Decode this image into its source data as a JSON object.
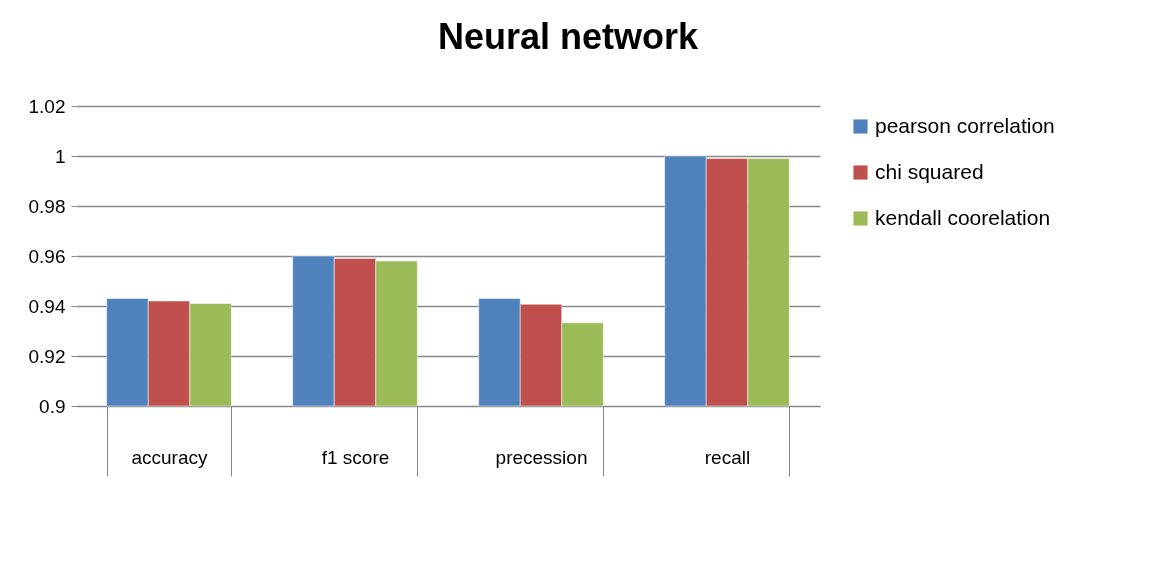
{
  "chart_data": {
    "type": "bar",
    "title": "Neural network",
    "categories": [
      "accuracy",
      "f1 score",
      "precession",
      "recall"
    ],
    "series": [
      {
        "name": "pearson correlation",
        "color": "#4f81bd",
        "values": [
          0.943,
          0.96,
          0.943,
          1.0
        ]
      },
      {
        "name": "chi squared",
        "color": "#c0504d",
        "values": [
          0.942,
          0.959,
          0.9407,
          0.999
        ]
      },
      {
        "name": "kendall coorelation",
        "color": "#9bbb59",
        "values": [
          0.941,
          0.958,
          0.9333,
          0.999
        ]
      }
    ],
    "ylim": [
      0.9,
      1.02
    ],
    "yticks": [
      0.9,
      0.92,
      0.94,
      0.96,
      0.98,
      1,
      1.02
    ],
    "grid": "y",
    "legend": "right"
  }
}
